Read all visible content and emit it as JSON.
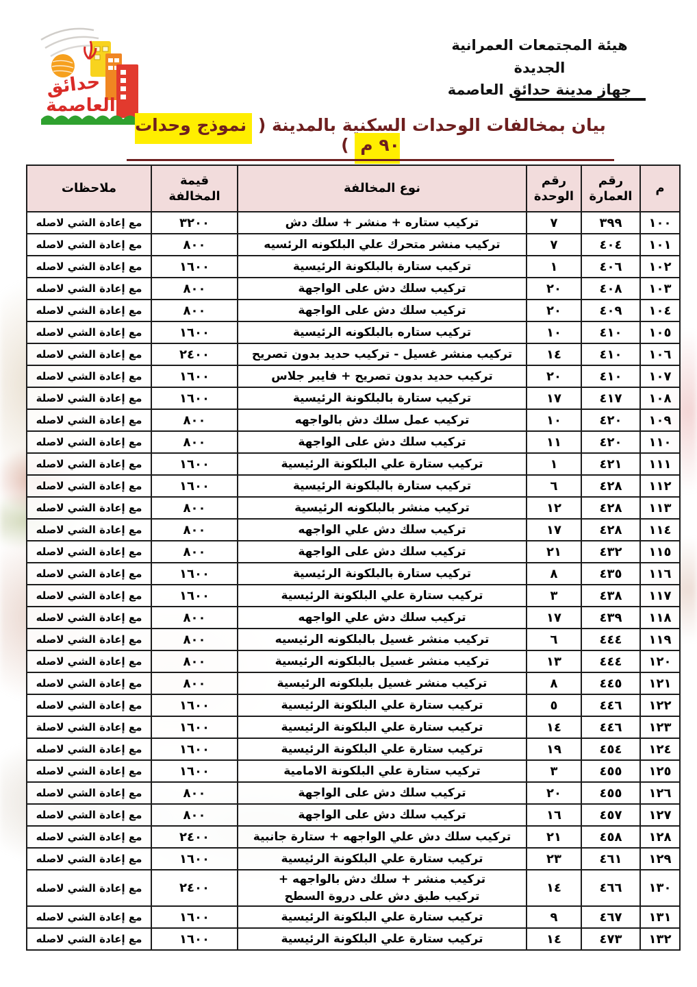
{
  "header": {
    "org_line1": "هيئة المجتمعات العمرانية الجديدة",
    "org_line2": "جهاز مدينة حدائق العاصمة",
    "logo_text_top": "حدائق",
    "logo_text_bottom": "العاصمة"
  },
  "title": {
    "text_before": "بيان بمخالفات الوحدات السكنية بالمدينة ( ",
    "highlight": "نموذج وحدات ٩٠ م",
    "text_after": " )",
    "highlight_color": "#ffee00",
    "text_color": "#6e1f1f"
  },
  "table": {
    "header_bg": "#f2dcdc",
    "columns": [
      "م",
      "رقم العمارة",
      "رقم الوحدة",
      "نوع المخالفة",
      "قيمة المخالفة",
      "ملاحظات"
    ],
    "rows": [
      {
        "serial": "١٠٠",
        "building": "٣٩٩",
        "unit": "٧",
        "violation": "تركيب ستاره + منشر + سلك دش",
        "value": "٣٢٠٠",
        "notes": "مع إعادة الشي لاصله"
      },
      {
        "serial": "١٠١",
        "building": "٤٠٤",
        "unit": "٧",
        "violation": "تركيب منشر متحرك علي البلكونه الرئسيه",
        "value": "٨٠٠",
        "notes": "مع إعادة الشي لاصله"
      },
      {
        "serial": "١٠٢",
        "building": "٤٠٦",
        "unit": "١",
        "violation": "تركيب ستارة بالبلكونة الرئيسية",
        "value": "١٦٠٠",
        "notes": "مع إعادة الشي لاصله"
      },
      {
        "serial": "١٠٣",
        "building": "٤٠٨",
        "unit": "٢٠",
        "violation": "تركيب سلك دش على الواجهة",
        "value": "٨٠٠",
        "notes": "مع إعادة الشي لاصله"
      },
      {
        "serial": "١٠٤",
        "building": "٤٠٩",
        "unit": "٢٠",
        "violation": "تركيب سلك دش على الواجهة",
        "value": "٨٠٠",
        "notes": "مع إعادة الشي لاصله"
      },
      {
        "serial": "١٠٥",
        "building": "٤١٠",
        "unit": "١٠",
        "violation": "تركيب ستاره بالبلكونه الرئيسية",
        "value": "١٦٠٠",
        "notes": "مع إعادة الشي لاصله"
      },
      {
        "serial": "١٠٦",
        "building": "٤١٠",
        "unit": "١٤",
        "violation": "تركيب منشر غسيل - تركيب حديد بدون تصريح",
        "value": "٢٤٠٠",
        "notes": "مع إعادة الشي لاصله"
      },
      {
        "serial": "١٠٧",
        "building": "٤١٠",
        "unit": "٢٠",
        "violation": "تركيب حديد بدون تصريح + فايبر جلاس",
        "value": "١٦٠٠",
        "notes": "مع إعادة الشي لاصله"
      },
      {
        "serial": "١٠٨",
        "building": "٤١٧",
        "unit": "١٧",
        "violation": "تركيب ستارة بالبلكونة الرئيسية",
        "value": "١٦٠٠",
        "notes": "مع إعادة الشي لاصلة"
      },
      {
        "serial": "١٠٩",
        "building": "٤٢٠",
        "unit": "١٠",
        "violation": "تركيب عمل سلك دش بالواجهه",
        "value": "٨٠٠",
        "notes": "مع إعادة الشي لاصله"
      },
      {
        "serial": "١١٠",
        "building": "٤٢٠",
        "unit": "١١",
        "violation": "تركيب سلك دش على الواجهة",
        "value": "٨٠٠",
        "notes": "مع إعادة الشي لاصله"
      },
      {
        "serial": "١١١",
        "building": "٤٢١",
        "unit": "١",
        "violation": "تركيب ستارة علي البلكونة الرئيسية",
        "value": "١٦٠٠",
        "notes": "مع إعادة الشي لاصله"
      },
      {
        "serial": "١١٢",
        "building": "٤٢٨",
        "unit": "٦",
        "violation": "تركيب ستارة بالبلكونة الرئيسية",
        "value": "١٦٠٠",
        "notes": "مع إعادة الشي لاصله"
      },
      {
        "serial": "١١٣",
        "building": "٤٢٨",
        "unit": "١٢",
        "violation": "تركيب منشر بالبلكونه الرئيسية",
        "value": "٨٠٠",
        "notes": "مع إعادة الشي لاصله"
      },
      {
        "serial": "١١٤",
        "building": "٤٢٨",
        "unit": "١٧",
        "violation": "تركيب سلك دش علي الواجهه",
        "value": "٨٠٠",
        "notes": "مع إعادة الشي لاصله"
      },
      {
        "serial": "١١٥",
        "building": "٤٣٢",
        "unit": "٢١",
        "violation": "تركيب سلك دش على الواجهة",
        "value": "٨٠٠",
        "notes": "مع إعادة الشي لاصله"
      },
      {
        "serial": "١١٦",
        "building": "٤٣٥",
        "unit": "٨",
        "violation": "تركيب ستارة بالبلكونة الرئيسية",
        "value": "١٦٠٠",
        "notes": "مع إعادة الشي لاصله"
      },
      {
        "serial": "١١٧",
        "building": "٤٣٨",
        "unit": "٣",
        "violation": "تركيب ستارة علي البلكونة الرئيسية",
        "value": "١٦٠٠",
        "notes": "مع إعادة الشي لاصله"
      },
      {
        "serial": "١١٨",
        "building": "٤٣٩",
        "unit": "١٧",
        "violation": "تركيب سلك دش علي الواجهه",
        "value": "٨٠٠",
        "notes": "مع إعادة الشي لاصله"
      },
      {
        "serial": "١١٩",
        "building": "٤٤٤",
        "unit": "٦",
        "violation": "تركيب منشر غسيل بالبلكونه الرئيسيه",
        "value": "٨٠٠",
        "notes": "مع إعادة الشي لاصله"
      },
      {
        "serial": "١٢٠",
        "building": "٤٤٤",
        "unit": "١٣",
        "violation": "تركيب منشر غسيل بالبلكونه الرئيسية",
        "value": "٨٠٠",
        "notes": "مع إعادة الشي لاصله"
      },
      {
        "serial": "١٢١",
        "building": "٤٤٥",
        "unit": "٨",
        "violation": "تركيب منشر غسيل بلبلكونه الرئيسية",
        "value": "٨٠٠",
        "notes": "مع إعادة الشي لاصله"
      },
      {
        "serial": "١٢٢",
        "building": "٤٤٦",
        "unit": "٥",
        "violation": "تركيب ستارة علي البلكونة الرئيسية",
        "value": "١٦٠٠",
        "notes": "مع إعادة الشي لاصله"
      },
      {
        "serial": "١٢٣",
        "building": "٤٤٦",
        "unit": "١٤",
        "violation": "تركيب ستارة علي البلكونة الرئيسية",
        "value": "١٦٠٠",
        "notes": "مع إعادة الشي لاصلة"
      },
      {
        "serial": "١٢٤",
        "building": "٤٥٤",
        "unit": "١٩",
        "violation": "تركيب ستارة علي البلكونة الرئيسية",
        "value": "١٦٠٠",
        "notes": "مع إعادة الشي لاصله"
      },
      {
        "serial": "١٢٥",
        "building": "٤٥٥",
        "unit": "٣",
        "violation": "تركيب ستارة علي البلكونة الامامية",
        "value": "١٦٠٠",
        "notes": "مع إعادة الشي لاصله"
      },
      {
        "serial": "١٢٦",
        "building": "٤٥٥",
        "unit": "٢٠",
        "violation": "تركيب سلك دش على الواجهة",
        "value": "٨٠٠",
        "notes": "مع إعادة الشي لاصله"
      },
      {
        "serial": "١٢٧",
        "building": "٤٥٧",
        "unit": "١٦",
        "violation": "تركيب سلك دش على الواجهة",
        "value": "٨٠٠",
        "notes": "مع إعادة الشي لاصله"
      },
      {
        "serial": "١٢٨",
        "building": "٤٥٨",
        "unit": "٢١",
        "violation": "تركيب سلك دش علي الواجهه + ستارة جانبية",
        "value": "٢٤٠٠",
        "notes": "مع إعادة الشي لاصله"
      },
      {
        "serial": "١٢٩",
        "building": "٤٦١",
        "unit": "٢٣",
        "violation": "تركيب ستارة علي البلكونة الرئيسية",
        "value": "١٦٠٠",
        "notes": "مع إعادة الشي لاصله"
      },
      {
        "serial": "١٣٠",
        "building": "٤٦٦",
        "unit": "١٤",
        "violation": "تركيب منشر + سلك دش بالواجهه +\nتركيب طبق دش على دروة السطح",
        "value": "٢٤٠٠",
        "notes": "مع إعادة الشي لاصله"
      },
      {
        "serial": "١٣١",
        "building": "٤٦٧",
        "unit": "٩",
        "violation": "تركيب ستارة علي البلكونة الرئيسية",
        "value": "١٦٠٠",
        "notes": "مع إعادة الشي لاصله"
      },
      {
        "serial": "١٣٢",
        "building": "٤٧٣",
        "unit": "١٤",
        "violation": "تركيب ستارة علي البلكونة الرئيسية",
        "value": "١٦٠٠",
        "notes": "مع إعادة الشي لاصله"
      }
    ]
  }
}
